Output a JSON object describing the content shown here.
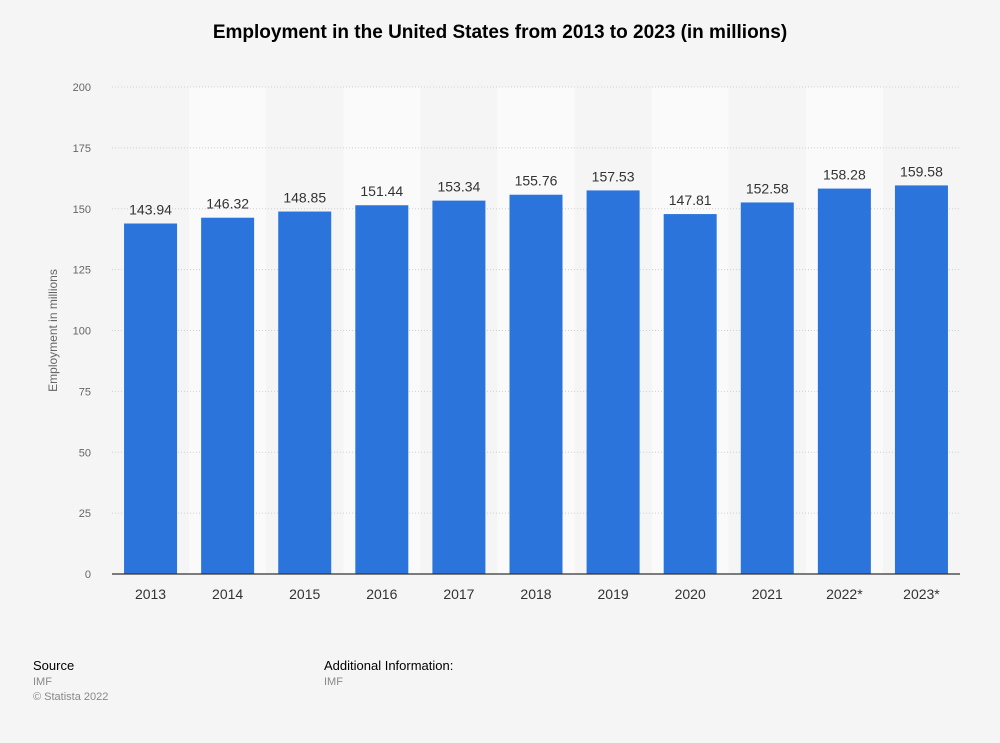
{
  "chart_data": {
    "type": "bar",
    "title": "Employment in the United States from 2013 to 2023 (in millions)",
    "xlabel": "",
    "ylabel": "Employment in millions",
    "categories": [
      "2013",
      "2014",
      "2015",
      "2016",
      "2017",
      "2018",
      "2019",
      "2020",
      "2021",
      "2022*",
      "2023*"
    ],
    "values": [
      143.94,
      146.32,
      148.85,
      151.44,
      153.34,
      155.76,
      157.53,
      147.81,
      152.58,
      158.28,
      159.58
    ],
    "value_labels": [
      "143.94",
      "146.32",
      "148.85",
      "151.44",
      "153.34",
      "155.76",
      "157.53",
      "147.81",
      "152.58",
      "158.28",
      "159.58"
    ],
    "ylim": [
      0,
      200
    ],
    "yticks": [
      "0",
      "25",
      "50",
      "75",
      "100",
      "125",
      "150",
      "175",
      "200"
    ],
    "grid": true,
    "bar_color": "#2a74db"
  },
  "footer": {
    "source_heading": "Source",
    "source_value": "IMF",
    "copyright": "© Statista 2022",
    "additional_heading": "Additional Information:",
    "additional_value": "IMF"
  }
}
